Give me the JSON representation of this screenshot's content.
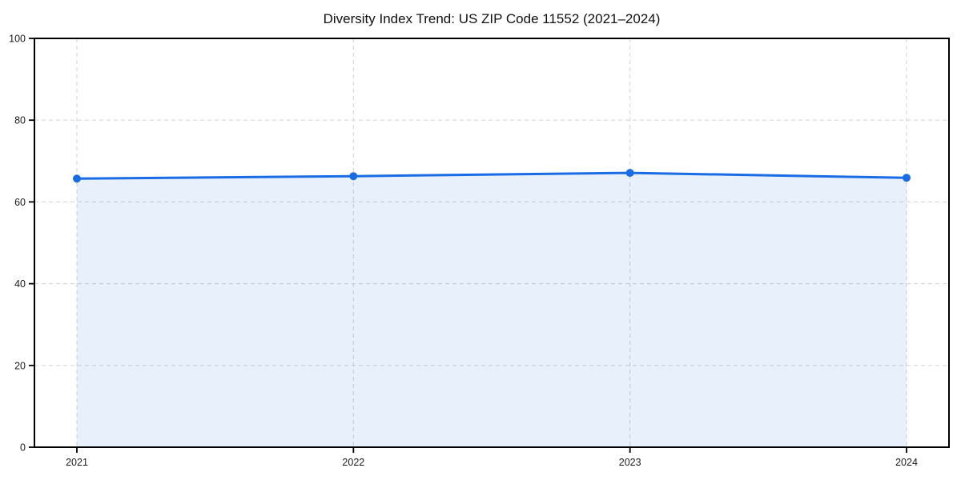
{
  "chart_data": {
    "type": "area",
    "title": "Diversity Index Trend: US ZIP Code 11552 (2021–2024)",
    "xlabel": "",
    "ylabel": "",
    "categories": [
      "2021",
      "2022",
      "2023",
      "2024"
    ],
    "series": [
      {
        "name": "Diversity Index",
        "values": [
          65.7,
          66.3,
          67.1,
          65.9
        ]
      }
    ],
    "ylim": [
      0,
      100
    ],
    "yticks": [
      0,
      20,
      40,
      60,
      80,
      100
    ],
    "grid": true,
    "grid_style": "dashed",
    "legend": false,
    "colors": {
      "line": "#1a6ce4",
      "marker": "#1a6ce4",
      "fill": "#1a6ce4",
      "fill_opacity": 0.1,
      "grid": "#d9d9d9",
      "axis": "#000000",
      "tick_text": "#1a1a1a",
      "background": "#ffffff"
    }
  }
}
